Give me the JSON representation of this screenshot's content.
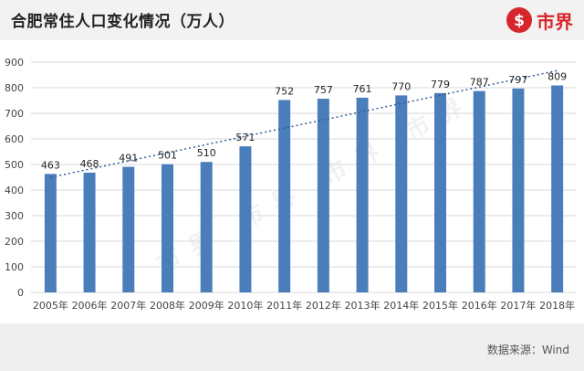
{
  "header": {
    "title": "合肥常住人口变化情况（万人）",
    "logo_text": "市界"
  },
  "footer": {
    "source": "数据来源：Wind"
  },
  "watermark": "市界 市界 市界 市界",
  "colors": {
    "bar": "#4a7ebb",
    "trend": "#2e5c94",
    "grid": "#d9d9d9",
    "axis_text": "#444444",
    "brand": "#d7262b"
  },
  "chart_data": {
    "type": "bar",
    "categories": [
      "2005年",
      "2006年",
      "2007年",
      "2008年",
      "2009年",
      "2010年",
      "2011年",
      "2012年",
      "2013年",
      "2014年",
      "2015年",
      "2016年",
      "2017年",
      "2018年"
    ],
    "values": [
      463,
      468,
      491,
      501,
      510,
      571,
      752,
      757,
      761,
      770,
      779,
      787,
      797,
      809
    ],
    "ylim": [
      0,
      900
    ],
    "yticks": [
      0,
      100,
      200,
      300,
      400,
      500,
      600,
      700,
      800,
      900
    ],
    "grid": true,
    "data_labels": true,
    "trendline": "linear-dotted",
    "title": "",
    "xlabel": "",
    "ylabel": ""
  }
}
